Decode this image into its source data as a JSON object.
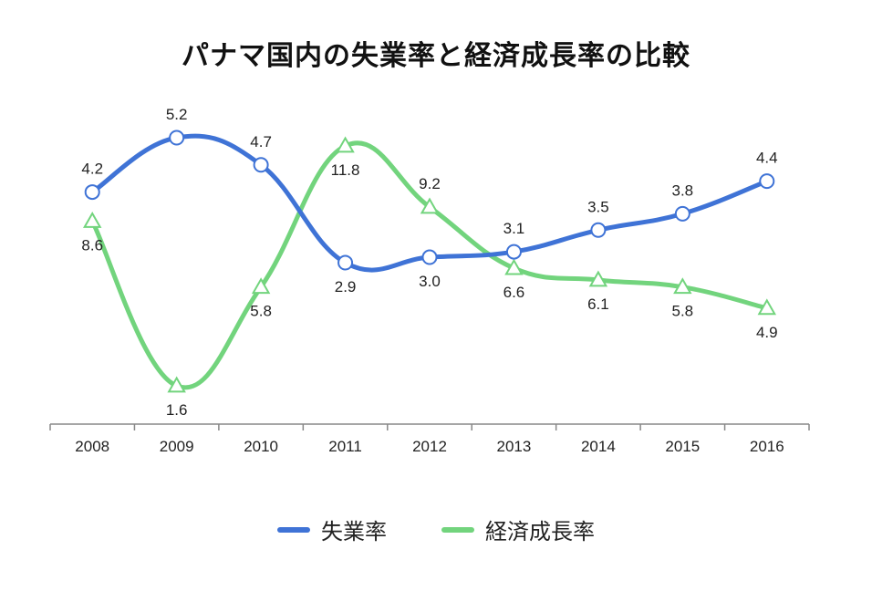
{
  "chart_data": {
    "type": "line",
    "title": "パナマ国内の失業率と経済成長率の比較",
    "categories": [
      "2008",
      "2009",
      "2010",
      "2011",
      "2012",
      "2013",
      "2014",
      "2015",
      "2016"
    ],
    "series": [
      {
        "name": "失業率",
        "color": "#3f73d6",
        "marker": "circle",
        "values": [
          4.2,
          5.2,
          4.7,
          2.9,
          3.0,
          3.1,
          3.5,
          3.8,
          4.4
        ],
        "labels": [
          "4.2",
          "5.2",
          "4.7",
          "2.9",
          "3.0",
          "3.1",
          "3.5",
          "3.8",
          "4.4"
        ]
      },
      {
        "name": "経済成長率",
        "color": "#72d47d",
        "marker": "triangle",
        "values": [
          8.6,
          1.6,
          5.8,
          11.8,
          9.2,
          6.6,
          6.1,
          5.8,
          4.9
        ],
        "labels": [
          "8.6",
          "1.6",
          "5.8",
          "11.8",
          "9.2",
          "6.6",
          "6.1",
          "5.8",
          "4.9"
        ]
      }
    ],
    "xlabel": "",
    "ylabel": "",
    "grid": false,
    "legend_position": "bottom"
  }
}
